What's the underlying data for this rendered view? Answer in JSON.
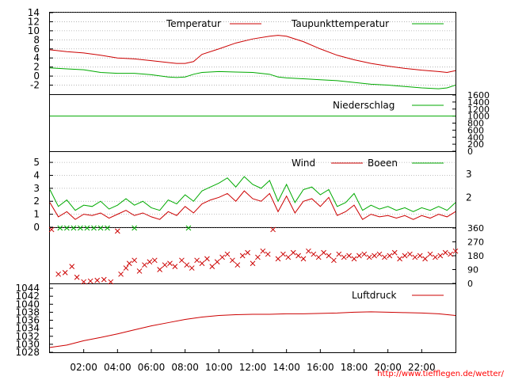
{
  "credit": "http://www.tiefflegen.de/wetter/",
  "colors": {
    "red": "#cc0000",
    "green": "#00aa00",
    "axis": "#000000",
    "grid": "#aaaaaa"
  },
  "time_axis": {
    "labels": [
      "02:00",
      "04:00",
      "06:00",
      "08:00",
      "10:00",
      "12:00",
      "14:00",
      "16:00",
      "18:00",
      "20:00",
      "22:00"
    ],
    "hours": [
      2,
      4,
      6,
      8,
      10,
      12,
      14,
      16,
      18,
      20,
      22
    ],
    "range": [
      0,
      24
    ]
  },
  "chart_data": [
    {
      "type": "line",
      "panel": "temperature",
      "ylim": [
        -4,
        14
      ],
      "yticks": [
        "14",
        "12",
        "10",
        "8",
        "6",
        "4",
        "2",
        "0",
        "-2"
      ],
      "ytick_values": [
        14,
        12,
        10,
        8,
        6,
        4,
        2,
        0,
        -2
      ],
      "x": [
        0,
        1,
        2,
        3,
        4,
        5,
        6,
        7,
        7.5,
        8,
        8.5,
        9,
        10,
        11,
        12,
        13,
        13.5,
        14,
        15,
        16,
        17,
        18,
        19,
        20,
        21,
        22,
        23,
        23.5,
        24
      ],
      "series": [
        {
          "name": "Temperatur",
          "color": "#cc0000",
          "values": [
            5.8,
            5.4,
            5.1,
            4.6,
            4.0,
            3.8,
            3.4,
            3.0,
            2.8,
            2.8,
            3.2,
            4.8,
            6.0,
            7.3,
            8.2,
            8.8,
            9.0,
            8.8,
            7.6,
            6.0,
            4.6,
            3.6,
            2.8,
            2.2,
            1.7,
            1.3,
            1.0,
            0.8,
            1.2
          ]
        },
        {
          "name": "Taupunkttemperatur",
          "color": "#00aa00",
          "values": [
            1.8,
            1.6,
            1.4,
            0.8,
            0.6,
            0.6,
            0.3,
            -0.2,
            -0.3,
            -0.2,
            0.4,
            0.8,
            1.0,
            0.9,
            0.8,
            0.4,
            -0.2,
            -0.4,
            -0.6,
            -0.8,
            -1.0,
            -1.4,
            -1.8,
            -2.0,
            -2.3,
            -2.6,
            -2.8,
            -2.6,
            -2.0
          ]
        }
      ]
    },
    {
      "type": "line",
      "panel": "precipitation",
      "ylim": [
        0,
        1600
      ],
      "yticks": [
        "1600",
        "1400",
        "1200",
        "1000",
        "800",
        "600",
        "400",
        "200",
        "0"
      ],
      "ytick_values": [
        1600,
        1400,
        1200,
        1000,
        800,
        600,
        400,
        200,
        0
      ],
      "x": [
        0,
        24
      ],
      "series": [
        {
          "name": "Niederschlag",
          "color": "#00aa00",
          "values": [
            1000,
            1000
          ]
        }
      ]
    },
    {
      "type": "line",
      "panel": "wind",
      "ylim": [
        0,
        5.8
      ],
      "yticks": [
        "5",
        "4",
        "3",
        "2",
        "1",
        "0"
      ],
      "ytick_values": [
        5,
        4,
        3,
        2,
        1,
        0
      ],
      "right_ticks": [
        "3",
        "2"
      ],
      "right_tick_values": [
        4.1,
        2.3
      ],
      "x": [
        0,
        0.5,
        1,
        1.5,
        2,
        2.5,
        3,
        3.5,
        4,
        4.5,
        5,
        5.5,
        6,
        6.5,
        7,
        7.5,
        8,
        8.5,
        9,
        9.5,
        10,
        10.5,
        11,
        11.5,
        12,
        12.5,
        13,
        13.5,
        14,
        14.5,
        15,
        15.5,
        16,
        16.5,
        17,
        17.5,
        18,
        18.5,
        19,
        19.5,
        20,
        20.5,
        21,
        21.5,
        22,
        22.5,
        23,
        23.5,
        24
      ],
      "series": [
        {
          "name": "Wind",
          "color": "#cc0000",
          "values": [
            1.9,
            0.8,
            1.2,
            0.6,
            1.0,
            0.9,
            1.1,
            0.7,
            1.0,
            1.3,
            0.9,
            1.1,
            0.8,
            0.6,
            1.2,
            0.9,
            1.6,
            1.1,
            1.8,
            2.1,
            2.3,
            2.6,
            2.0,
            2.8,
            2.2,
            2.0,
            2.6,
            1.2,
            2.4,
            1.1,
            2.0,
            2.2,
            1.6,
            2.3,
            0.9,
            1.2,
            1.7,
            0.6,
            1.0,
            0.8,
            0.9,
            0.7,
            0.9,
            0.6,
            0.9,
            0.7,
            1.0,
            0.8,
            1.2
          ]
        },
        {
          "name": "Boeen",
          "color": "#00aa00",
          "values": [
            2.9,
            1.6,
            2.1,
            1.3,
            1.7,
            1.6,
            2.0,
            1.4,
            1.7,
            2.2,
            1.7,
            2.0,
            1.5,
            1.3,
            2.1,
            1.8,
            2.5,
            2.0,
            2.8,
            3.1,
            3.4,
            3.8,
            3.1,
            3.9,
            3.3,
            3.0,
            3.6,
            2.0,
            3.3,
            1.9,
            2.9,
            3.1,
            2.5,
            2.9,
            1.6,
            1.9,
            2.6,
            1.3,
            1.7,
            1.4,
            1.6,
            1.3,
            1.5,
            1.2,
            1.5,
            1.3,
            1.6,
            1.3,
            1.9
          ]
        }
      ]
    },
    {
      "type": "scatter",
      "panel": "wind-direction",
      "ylim": [
        0,
        360
      ],
      "yticks": [
        "360",
        "270",
        "180",
        "90",
        "0"
      ],
      "ytick_values": [
        360,
        270,
        180,
        90,
        0
      ],
      "series": [
        {
          "name": "",
          "color": "#cc0000",
          "marker": "x",
          "points": [
            [
              0.1,
              350
            ],
            [
              0.5,
              60
            ],
            [
              0.9,
              70
            ],
            [
              1.3,
              110
            ],
            [
              1.6,
              40
            ],
            [
              2.0,
              10
            ],
            [
              2.4,
              15
            ],
            [
              2.8,
              20
            ],
            [
              3.2,
              25
            ],
            [
              3.6,
              10
            ],
            [
              4.0,
              340
            ],
            [
              4.2,
              60
            ],
            [
              4.5,
              100
            ],
            [
              4.7,
              130
            ],
            [
              5.0,
              150
            ],
            [
              5.3,
              80
            ],
            [
              5.6,
              120
            ],
            [
              5.9,
              140
            ],
            [
              6.2,
              150
            ],
            [
              6.5,
              90
            ],
            [
              6.8,
              120
            ],
            [
              7.1,
              130
            ],
            [
              7.4,
              110
            ],
            [
              7.8,
              150
            ],
            [
              8.1,
              120
            ],
            [
              8.4,
              100
            ],
            [
              8.7,
              150
            ],
            [
              9.0,
              130
            ],
            [
              9.3,
              160
            ],
            [
              9.6,
              110
            ],
            [
              9.9,
              140
            ],
            [
              10.2,
              170
            ],
            [
              10.5,
              190
            ],
            [
              10.8,
              150
            ],
            [
              11.1,
              120
            ],
            [
              11.4,
              180
            ],
            [
              11.7,
              200
            ],
            [
              12.0,
              130
            ],
            [
              12.3,
              170
            ],
            [
              12.6,
              210
            ],
            [
              12.9,
              190
            ],
            [
              13.2,
              350
            ],
            [
              13.5,
              160
            ],
            [
              13.8,
              190
            ],
            [
              14.1,
              170
            ],
            [
              14.4,
              200
            ],
            [
              14.7,
              180
            ],
            [
              15.0,
              160
            ],
            [
              15.3,
              210
            ],
            [
              15.6,
              190
            ],
            [
              15.9,
              170
            ],
            [
              16.2,
              200
            ],
            [
              16.5,
              180
            ],
            [
              16.8,
              150
            ],
            [
              17.1,
              190
            ],
            [
              17.4,
              170
            ],
            [
              17.7,
              180
            ],
            [
              18.0,
              160
            ],
            [
              18.3,
              180
            ],
            [
              18.6,
              190
            ],
            [
              18.9,
              170
            ],
            [
              19.2,
              180
            ],
            [
              19.5,
              190
            ],
            [
              19.8,
              170
            ],
            [
              20.1,
              180
            ],
            [
              20.4,
              200
            ],
            [
              20.7,
              160
            ],
            [
              21.0,
              180
            ],
            [
              21.3,
              190
            ],
            [
              21.6,
              170
            ],
            [
              21.9,
              180
            ],
            [
              22.2,
              160
            ],
            [
              22.5,
              190
            ],
            [
              22.8,
              170
            ],
            [
              23.1,
              180
            ],
            [
              23.4,
              200
            ],
            [
              23.7,
              190
            ],
            [
              24.0,
              210
            ]
          ]
        },
        {
          "name": "",
          "color": "#00aa00",
          "marker": "x",
          "points": [
            [
              0.6,
              360
            ],
            [
              1.0,
              360
            ],
            [
              1.4,
              360
            ],
            [
              1.8,
              360
            ],
            [
              2.2,
              360
            ],
            [
              2.6,
              360
            ],
            [
              3.0,
              360
            ],
            [
              3.4,
              360
            ],
            [
              5.0,
              360
            ],
            [
              8.2,
              360
            ]
          ]
        }
      ]
    },
    {
      "type": "line",
      "panel": "pressure",
      "ylim": [
        1028,
        1045
      ],
      "yticks": [
        "1044",
        "1042",
        "1040",
        "1038",
        "1036",
        "1034",
        "1032",
        "1030",
        "1028"
      ],
      "ytick_values": [
        1044,
        1042,
        1040,
        1038,
        1036,
        1034,
        1032,
        1030,
        1028
      ],
      "x": [
        0,
        1,
        2,
        3,
        4,
        5,
        6,
        7,
        8,
        9,
        10,
        11,
        12,
        13,
        14,
        15,
        16,
        17,
        18,
        19,
        20,
        21,
        22,
        23,
        24
      ],
      "series": [
        {
          "name": "Luftdruck",
          "color": "#cc0000",
          "values": [
            1029.2,
            1029.8,
            1030.9,
            1031.7,
            1032.6,
            1033.6,
            1034.6,
            1035.4,
            1036.2,
            1036.8,
            1037.2,
            1037.4,
            1037.5,
            1037.5,
            1037.6,
            1037.6,
            1037.7,
            1037.8,
            1038.0,
            1038.1,
            1038.0,
            1037.9,
            1037.8,
            1037.6,
            1037.2
          ]
        }
      ]
    }
  ]
}
